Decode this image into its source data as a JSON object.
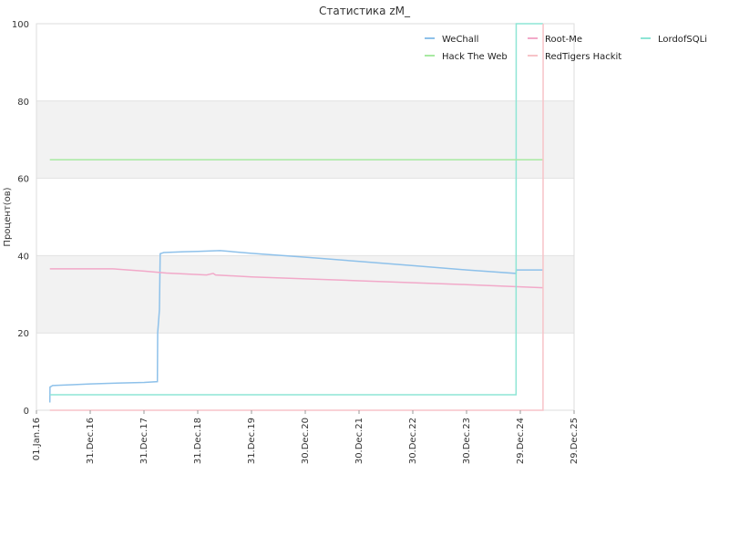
{
  "chart_data": {
    "type": "line",
    "title": "Статистика zM_",
    "xlabel": "",
    "ylabel": "Процент(ов)",
    "ylim": [
      0,
      100
    ],
    "xlim": [
      "2016-01-01",
      "2025-12-29"
    ],
    "y_ticks": [
      0,
      20,
      40,
      60,
      80,
      100
    ],
    "x_ticks": [
      {
        "date": "2016-01-01",
        "label": "01.Jan.16"
      },
      {
        "date": "2016-12-31",
        "label": "31.Dec.16"
      },
      {
        "date": "2017-12-31",
        "label": "31.Dec.17"
      },
      {
        "date": "2018-12-31",
        "label": "31.Dec.18"
      },
      {
        "date": "2019-12-31",
        "label": "31.Dec.19"
      },
      {
        "date": "2020-12-30",
        "label": "30.Dec.20"
      },
      {
        "date": "2021-12-30",
        "label": "30.Dec.21"
      },
      {
        "date": "2022-12-30",
        "label": "30.Dec.22"
      },
      {
        "date": "2023-12-30",
        "label": "30.Dec.23"
      },
      {
        "date": "2024-12-29",
        "label": "29.Dec.24"
      },
      {
        "date": "2025-12-29",
        "label": "29.Dec.25"
      }
    ],
    "grid": {
      "horizontal": true,
      "alternating_bands": true,
      "band_color": "#f2f2f2"
    },
    "legend_position": "top-right",
    "series": [
      {
        "name": "WeChall",
        "color": "#8ec1ea",
        "points": [
          [
            "2016-04-01",
            2
          ],
          [
            "2016-04-02",
            6
          ],
          [
            "2016-04-20",
            6.4
          ],
          [
            "2016-09-01",
            6.6
          ],
          [
            "2017-01-01",
            6.8
          ],
          [
            "2017-06-01",
            7.0
          ],
          [
            "2018-01-01",
            7.2
          ],
          [
            "2018-04-01",
            7.4
          ],
          [
            "2018-04-03",
            20
          ],
          [
            "2018-04-15",
            26
          ],
          [
            "2018-04-20",
            40.5
          ],
          [
            "2018-05-15",
            40.8
          ],
          [
            "2018-10-01",
            41.0
          ],
          [
            "2019-01-01",
            41.1
          ],
          [
            "2019-06-01",
            41.3
          ],
          [
            "2020-01-01",
            40.6
          ],
          [
            "2021-01-01",
            39.6
          ],
          [
            "2022-01-01",
            38.5
          ],
          [
            "2023-01-01",
            37.4
          ],
          [
            "2024-01-01",
            36.3
          ],
          [
            "2024-11-30",
            35.4
          ],
          [
            "2024-12-01",
            36.3
          ],
          [
            "2025-06-01",
            36.3
          ]
        ]
      },
      {
        "name": "Root-Me",
        "color": "#f2a9c9",
        "points": [
          [
            "2016-04-01",
            36.6
          ],
          [
            "2017-06-01",
            36.6
          ],
          [
            "2018-01-01",
            36.0
          ],
          [
            "2018-06-01",
            35.5
          ],
          [
            "2019-03-01",
            35.0
          ],
          [
            "2019-04-15",
            35.4
          ],
          [
            "2019-05-01",
            35.0
          ],
          [
            "2020-01-01",
            34.5
          ],
          [
            "2021-01-01",
            34.0
          ],
          [
            "2022-01-01",
            33.5
          ],
          [
            "2023-01-01",
            33.0
          ],
          [
            "2024-01-01",
            32.5
          ],
          [
            "2025-06-01",
            31.7
          ]
        ]
      },
      {
        "name": "LordofSQLi",
        "color": "#8ee5d5",
        "points": [
          [
            "2016-04-01",
            4.0
          ],
          [
            "2024-11-30",
            4.0
          ],
          [
            "2024-12-01",
            100
          ],
          [
            "2025-06-01",
            100
          ]
        ]
      },
      {
        "name": "Hack The Web",
        "color": "#a8eaa2",
        "points": [
          [
            "2016-04-01",
            64.8
          ],
          [
            "2025-06-01",
            64.8
          ]
        ]
      },
      {
        "name": "RedTigers Hackit",
        "color": "#f7c3c8",
        "points": [
          [
            "2016-04-01",
            0
          ],
          [
            "2025-06-01",
            0
          ],
          [
            "2025-06-02",
            100
          ]
        ]
      }
    ]
  }
}
